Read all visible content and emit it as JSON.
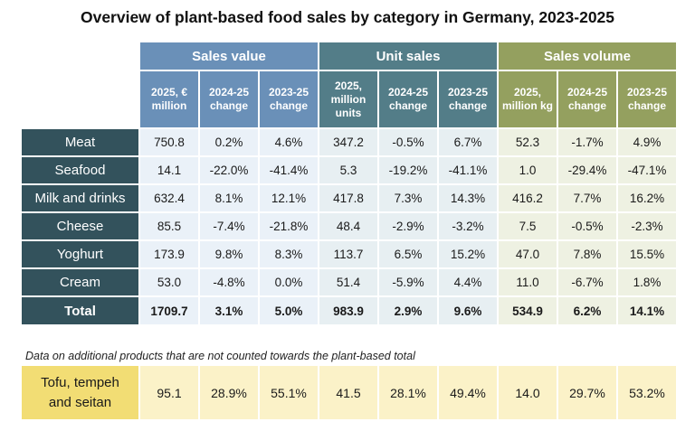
{
  "title": "Overview of plant-based food sales by category in Germany, 2023-2025",
  "groups": {
    "sales_value": "Sales value",
    "unit_sales": "Unit sales",
    "sales_volume": "Sales volume"
  },
  "subheaders": {
    "sales_value": [
      "2025, €\nmillion",
      "2024-25\nchange",
      "2023-25\nchange"
    ],
    "unit_sales": [
      "2025,\nmillion\nunits",
      "2024-25\nchange",
      "2023-25\nchange"
    ],
    "sales_volume": [
      "2025,\nmillion kg",
      "2024-25\nchange",
      "2023-25\nchange"
    ]
  },
  "rows": [
    {
      "label": "Meat",
      "values": [
        "750.8",
        "0.2%",
        "4.6%",
        "347.2",
        "-0.5%",
        "6.7%",
        "52.3",
        "-1.7%",
        "4.9%"
      ]
    },
    {
      "label": "Seafood",
      "values": [
        "14.1",
        "-22.0%",
        "-41.4%",
        "5.3",
        "-19.2%",
        "-41.1%",
        "1.0",
        "-29.4%",
        "-47.1%"
      ]
    },
    {
      "label": "Milk and drinks",
      "values": [
        "632.4",
        "8.1%",
        "12.1%",
        "417.8",
        "7.3%",
        "14.3%",
        "416.2",
        "7.7%",
        "16.2%"
      ]
    },
    {
      "label": "Cheese",
      "values": [
        "85.5",
        "-7.4%",
        "-21.8%",
        "48.4",
        "-2.9%",
        "-3.2%",
        "7.5",
        "-0.5%",
        "-2.3%"
      ]
    },
    {
      "label": "Yoghurt",
      "values": [
        "173.9",
        "9.8%",
        "8.3%",
        "113.7",
        "6.5%",
        "15.2%",
        "47.0",
        "7.8%",
        "15.5%"
      ]
    },
    {
      "label": "Cream",
      "values": [
        "53.0",
        "-4.8%",
        "0.0%",
        "51.4",
        "-5.9%",
        "4.4%",
        "11.0",
        "-6.7%",
        "1.8%"
      ]
    }
  ],
  "total": {
    "label": "Total",
    "values": [
      "1709.7",
      "3.1%",
      "5.0%",
      "983.9",
      "2.9%",
      "9.6%",
      "534.9",
      "6.2%",
      "14.1%"
    ]
  },
  "note": "Data on additional products that are not counted towards the plant-based total",
  "extra": {
    "label": "Tofu, tempeh\nand seitan",
    "values": [
      "95.1",
      "28.9%",
      "55.1%",
      "41.5",
      "28.1%",
      "49.4%",
      "14.0",
      "29.7%",
      "53.2%"
    ]
  }
}
